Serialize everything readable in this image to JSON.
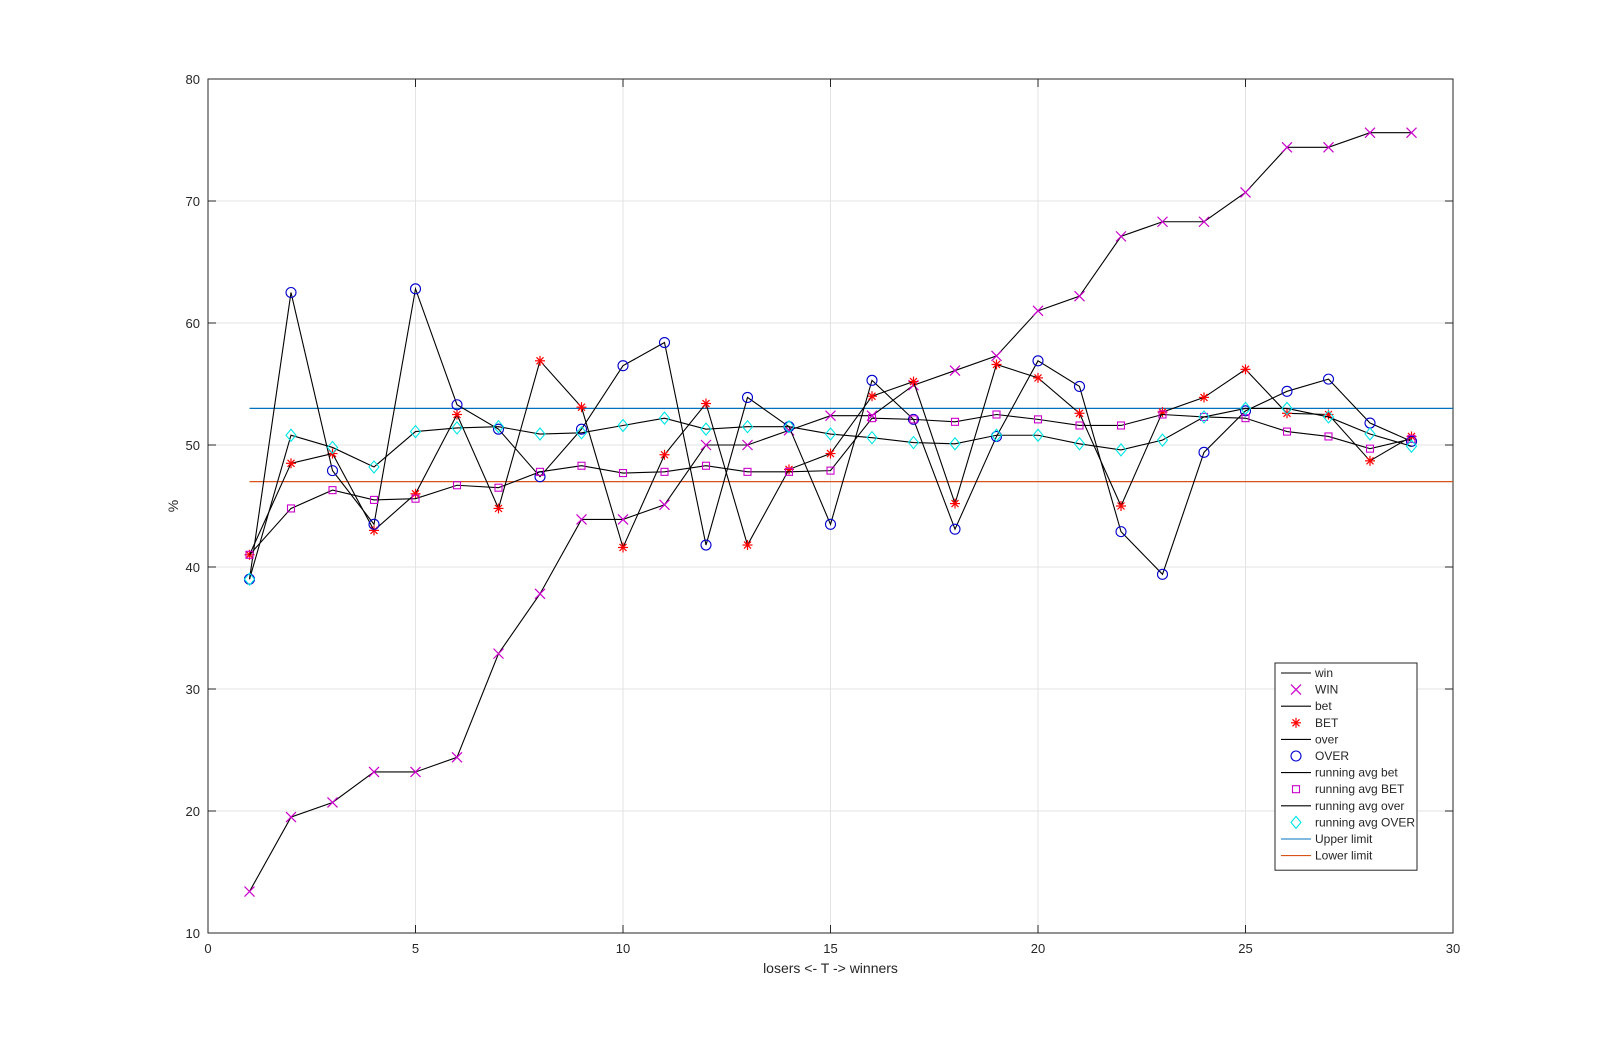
{
  "chart_data": {
    "type": "line",
    "title": "",
    "xlabel": "losers <- T -> winners",
    "ylabel": "%",
    "xlim": [
      0,
      30
    ],
    "ylim": [
      10,
      80
    ],
    "xticks": [
      0,
      5,
      10,
      15,
      20,
      25,
      30
    ],
    "yticks": [
      10,
      20,
      30,
      40,
      50,
      60,
      70,
      80
    ],
    "grid": true,
    "legend_position": "bottom-right",
    "x": [
      1,
      2,
      3,
      4,
      5,
      6,
      7,
      8,
      9,
      10,
      11,
      12,
      13,
      14,
      15,
      16,
      17,
      18,
      19,
      20,
      21,
      22,
      23,
      24,
      25,
      26,
      27,
      28,
      29
    ],
    "series": [
      {
        "name": "win",
        "legend": [
          "win",
          "WIN"
        ],
        "marker": "x",
        "color": "#cc00cc",
        "values": [
          13.4,
          19.5,
          20.7,
          23.2,
          23.2,
          24.4,
          32.9,
          37.8,
          43.9,
          43.9,
          45.1,
          50.0,
          50.0,
          51.2,
          52.4,
          52.4,
          54.9,
          56.1,
          57.3,
          61.0,
          62.2,
          67.1,
          68.3,
          68.3,
          70.7,
          74.4,
          74.4,
          75.6,
          75.6
        ]
      },
      {
        "name": "bet",
        "legend": [
          "bet",
          "BET"
        ],
        "marker": "asterisk",
        "color": "#ff0000",
        "values": [
          41.0,
          48.5,
          49.3,
          43.0,
          46.0,
          52.5,
          44.8,
          56.9,
          53.1,
          41.6,
          49.2,
          53.4,
          41.8,
          48.0,
          49.3,
          54.0,
          55.2,
          45.2,
          56.6,
          55.5,
          52.6,
          45.0,
          52.7,
          53.9,
          56.2,
          52.6,
          52.5,
          48.7,
          50.7
        ]
      },
      {
        "name": "over",
        "legend": [
          "over",
          "OVER"
        ],
        "marker": "circle",
        "color": "#0000cc",
        "values": [
          39.0,
          62.5,
          47.9,
          43.5,
          62.8,
          53.3,
          51.3,
          47.4,
          51.3,
          56.5,
          58.4,
          41.8,
          53.9,
          51.5,
          43.5,
          55.3,
          52.1,
          43.1,
          50.7,
          56.9,
          54.8,
          42.9,
          39.4,
          49.4,
          52.8,
          54.4,
          55.4,
          51.8,
          50.3
        ]
      },
      {
        "name": "running avg bet",
        "legend": [
          "running avg bet",
          "running avg BET"
        ],
        "marker": "square",
        "color": "#cc00cc",
        "values": [
          41.0,
          44.8,
          46.3,
          45.5,
          45.6,
          46.7,
          46.5,
          47.8,
          48.3,
          47.7,
          47.8,
          48.3,
          47.8,
          47.8,
          47.9,
          52.2,
          52.1,
          51.9,
          52.5,
          52.1,
          51.6,
          51.6,
          52.5,
          52.3,
          52.2,
          51.1,
          50.7,
          49.7,
          50.5
        ]
      },
      {
        "name": "running avg over",
        "legend": [
          "running avg over",
          "running avg OVER"
        ],
        "marker": "diamond",
        "color": "#00e5e5",
        "values": [
          39.0,
          50.8,
          49.8,
          48.2,
          51.1,
          51.4,
          51.5,
          50.9,
          51.0,
          51.6,
          52.2,
          51.3,
          51.5,
          51.5,
          50.9,
          50.6,
          50.2,
          50.1,
          50.8,
          50.8,
          50.1,
          49.6,
          50.4,
          52.3,
          53.0,
          53.0,
          52.3,
          50.9,
          49.9
        ]
      }
    ],
    "reference_lines": [
      {
        "name": "Upper limit",
        "y": 53,
        "x_from": 1,
        "x_to": 30,
        "color": "#0072bd"
      },
      {
        "name": "Lower limit",
        "y": 47,
        "x_from": 1,
        "x_to": 30,
        "color": "#d95319"
      }
    ]
  }
}
